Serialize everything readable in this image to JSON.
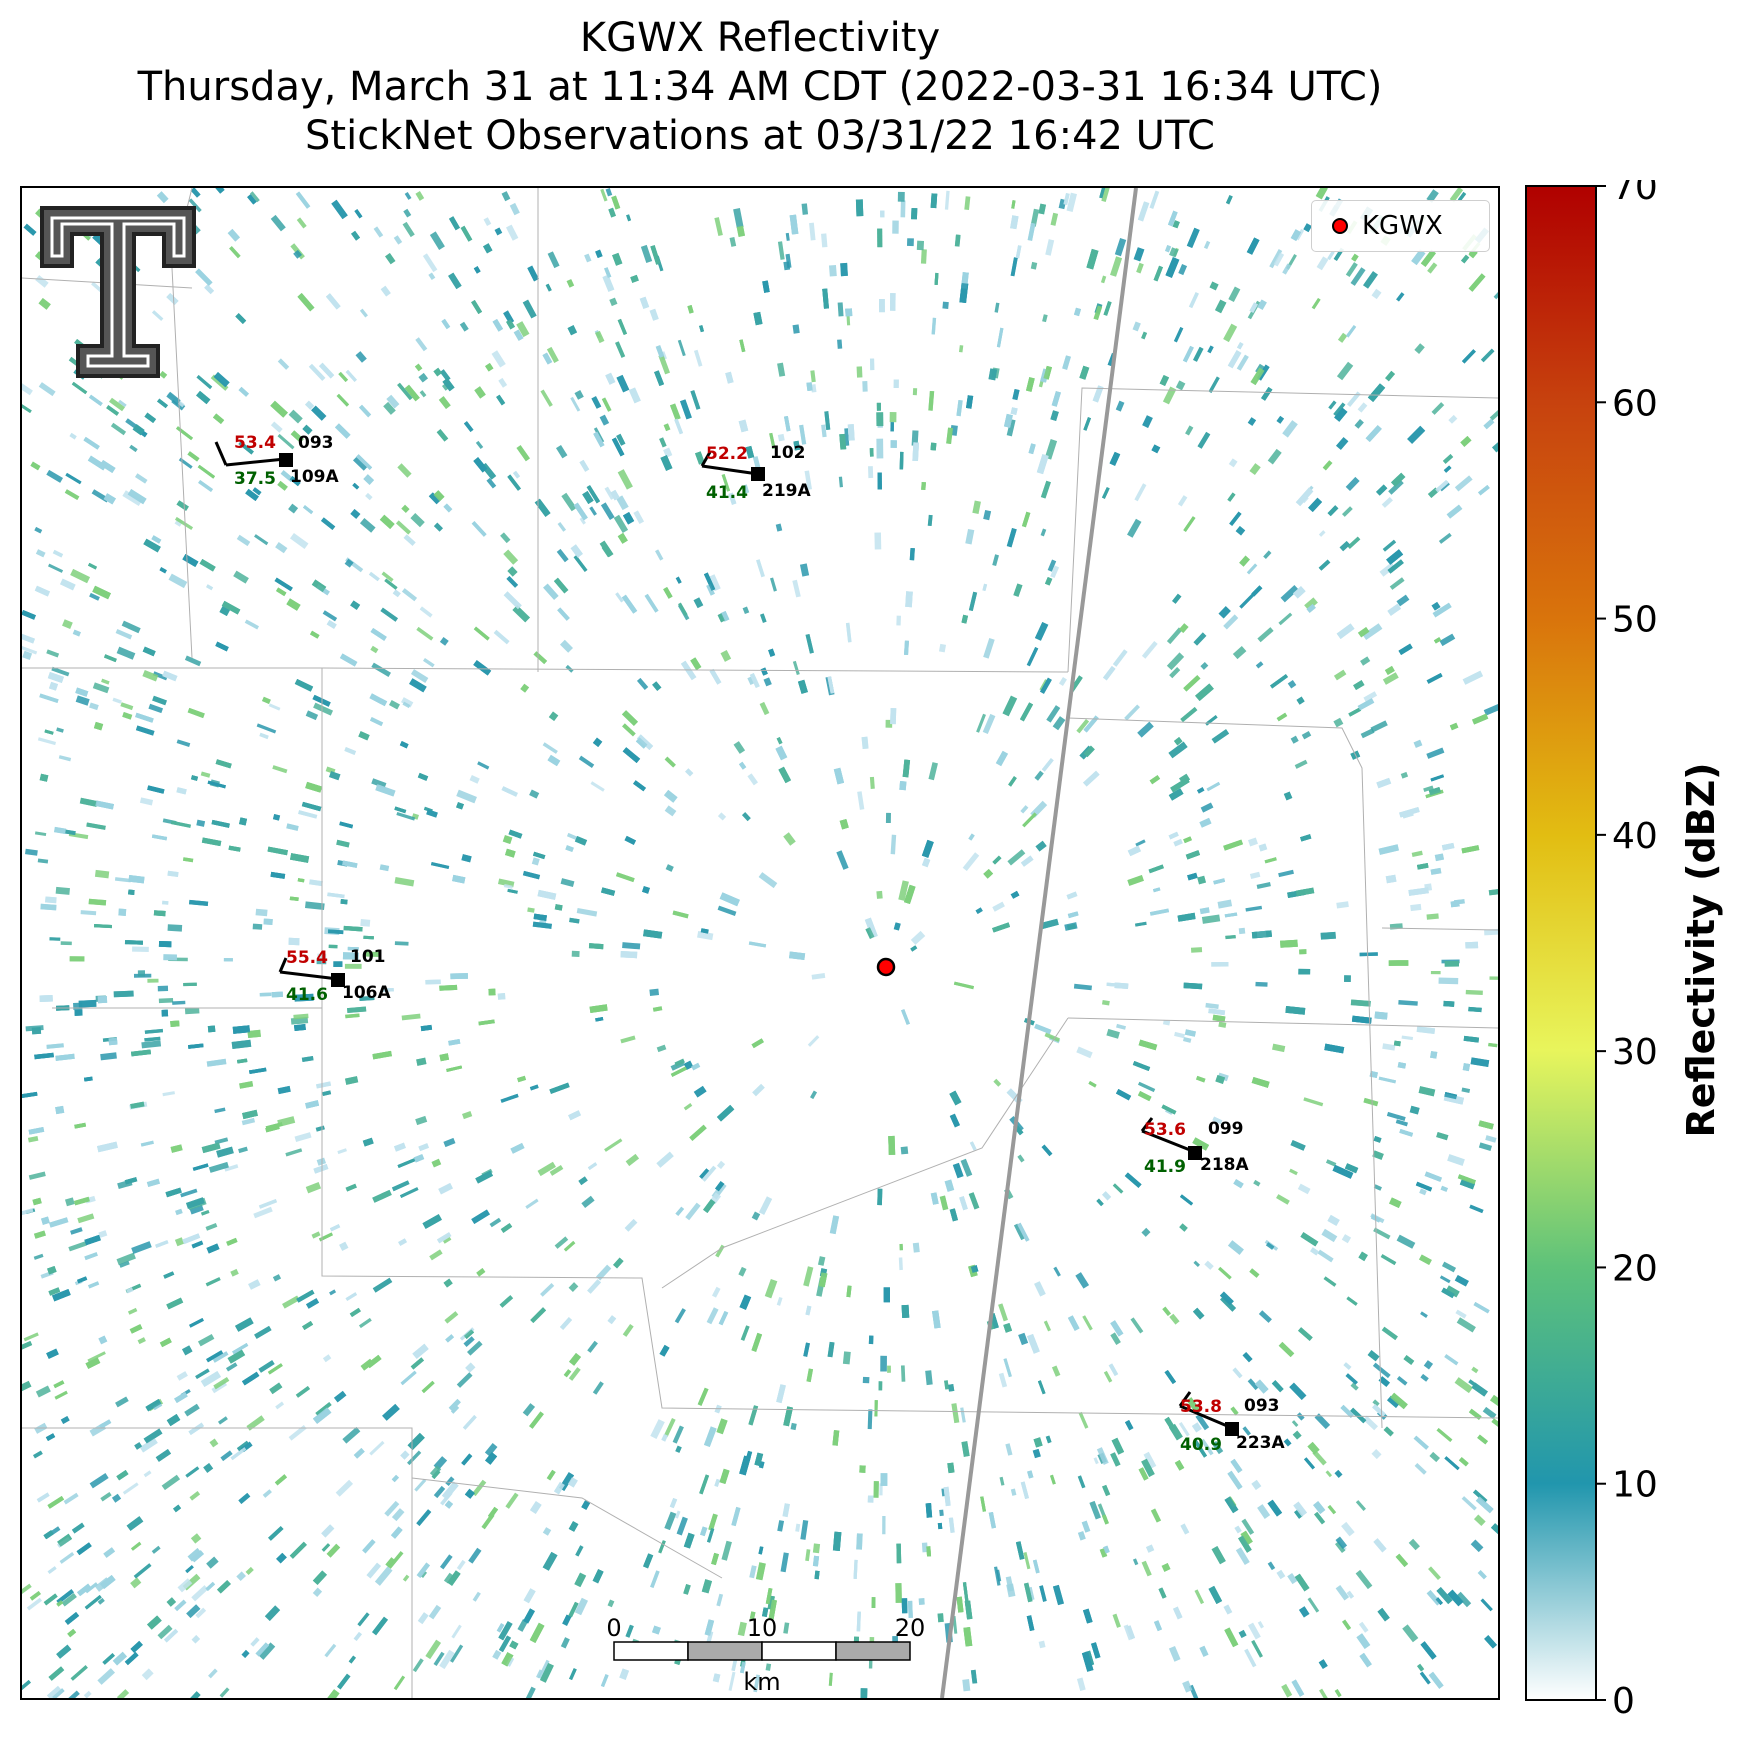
{
  "title": {
    "line1": "KGWX Reflectivity",
    "line2": "Thursday, March 31 at 11:34 AM CDT (2022-03-31 16:34 UTC)",
    "line3": "StickNet Observations at 03/31/22 16:42 UTC"
  },
  "legend": {
    "label": "KGWX",
    "marker_color": "#ff0000"
  },
  "radar": {
    "name": "KGWX"
  },
  "stations": [
    {
      "id": "109A",
      "temp": "53.4",
      "dew": "37.5",
      "pressure": "093",
      "wind_dir_deg": 290
    },
    {
      "id": "219A",
      "temp": "52.2",
      "dew": "41.4",
      "pressure": "102",
      "wind_dir_deg": 285
    },
    {
      "id": "106A",
      "temp": "55.4",
      "dew": "41.6",
      "pressure": "101",
      "wind_dir_deg": 285
    },
    {
      "id": "218A",
      "temp": "53.6",
      "dew": "41.9",
      "pressure": "099",
      "wind_dir_deg": 300
    },
    {
      "id": "223A",
      "temp": "53.8",
      "dew": "40.9",
      "pressure": "093",
      "wind_dir_deg": 300
    }
  ],
  "scale_bar": {
    "ticks": [
      "0",
      "10",
      "20"
    ],
    "unit": "km"
  },
  "colorbar": {
    "label": "Reflectivity (dBZ)",
    "min": 0,
    "max": 70,
    "ticks": [
      "0",
      "10",
      "20",
      "30",
      "40",
      "50",
      "60",
      "70"
    ],
    "colors": [
      "#ffffff",
      "#2196ad",
      "#5ec27a",
      "#e8f55c",
      "#e2bd12",
      "#d9740c",
      "#c7420e",
      "#b00000"
    ]
  },
  "colors": {
    "temp": "#c00000",
    "dew": "#006000",
    "pressure": "#000000",
    "highway": "#999999",
    "county": "#b0b0b0"
  }
}
